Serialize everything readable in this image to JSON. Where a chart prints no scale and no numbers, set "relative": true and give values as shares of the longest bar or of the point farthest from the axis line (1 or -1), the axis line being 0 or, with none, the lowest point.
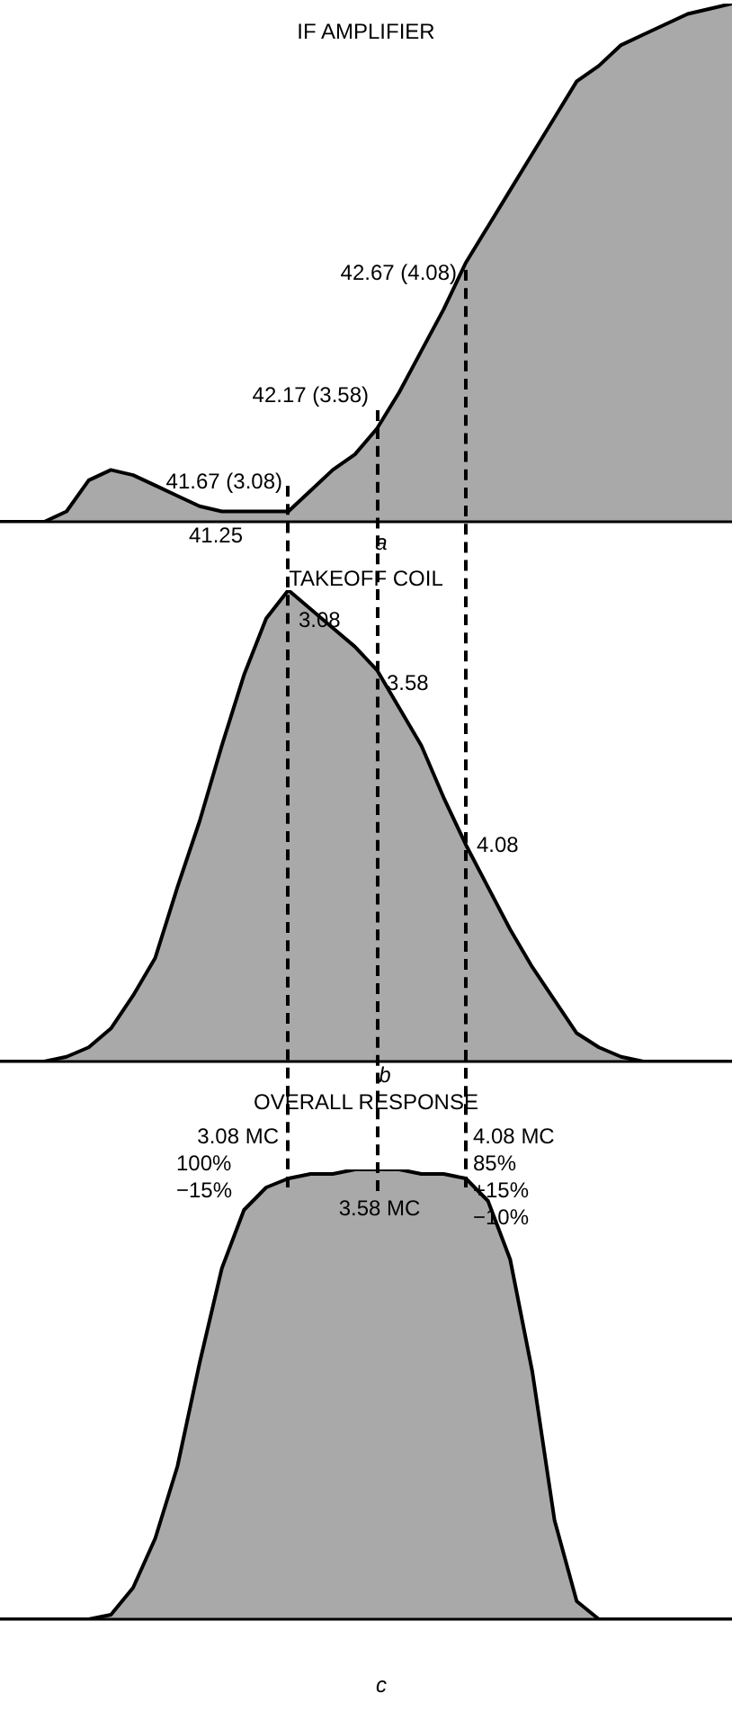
{
  "chart_data": [
    {
      "type": "area",
      "title": "IF AMPLIFIER",
      "relative": true,
      "categories": [
        null,
        null,
        null,
        null,
        null,
        null,
        null,
        null,
        null,
        null,
        null,
        null,
        null,
        null,
        null,
        null,
        null,
        null,
        null,
        null,
        null,
        null,
        null,
        null,
        null,
        null,
        null,
        null,
        null,
        null,
        null,
        null,
        null,
        null
      ],
      "series": [
        {
          "color": "#a9a9a9",
          "values": [
            0,
            0,
            0,
            0.02,
            0.08,
            0.1,
            0.09,
            0.07,
            0.05,
            0.03,
            0.02,
            0.02,
            0.02,
            0.02,
            0.06,
            0.1,
            0.13,
            0.18,
            0.25,
            0.33,
            0.41,
            0.5,
            0.57,
            0.64,
            0.71,
            0.78,
            0.85,
            0.88,
            0.92,
            0.94,
            0.96,
            0.98,
            0.99,
            1
          ]
        }
      ],
      "annotations": [
        "41.67 (3.08)",
        "42.17 (3.58)",
        "42.67 (4.08)",
        "41.25",
        "a"
      ]
    },
    {
      "type": "area",
      "title": "TAKEOFF COIL",
      "relative": true,
      "categories": [
        null,
        null,
        null,
        null,
        null,
        null,
        null,
        null,
        null,
        null,
        null,
        null,
        null,
        null,
        null,
        null,
        null,
        null,
        null,
        null,
        null,
        null,
        null,
        null,
        null,
        null,
        null,
        null,
        null,
        null,
        null,
        null,
        null,
        null
      ],
      "series": [
        {
          "color": "#a9a9a9",
          "values": [
            0,
            0,
            0,
            0.01,
            0.03,
            0.07,
            0.14,
            0.22,
            0.37,
            0.51,
            0.67,
            0.82,
            0.94,
            1,
            0.96,
            0.92,
            0.88,
            0.83,
            0.75,
            0.67,
            0.56,
            0.46,
            0.37,
            0.28,
            0.2,
            0.13,
            0.06,
            0.03,
            0.01,
            0,
            0,
            0,
            0,
            0
          ]
        }
      ],
      "annotations": [
        "3.08",
        "3.58",
        "4.08",
        "b"
      ]
    },
    {
      "type": "area",
      "title": "OVERALL RESPONSE",
      "relative": true,
      "categories": [
        null,
        null,
        null,
        null,
        null,
        null,
        null,
        null,
        null,
        null,
        null,
        null,
        null,
        null,
        null,
        null,
        null,
        null,
        null,
        null,
        null,
        null,
        null,
        null,
        null,
        null,
        null,
        null,
        null,
        null,
        null,
        null,
        null,
        null
      ],
      "series": [
        {
          "color": "#a9a9a9",
          "values": [
            0,
            0,
            0,
            0,
            0,
            0.01,
            0.07,
            0.18,
            0.34,
            0.57,
            0.78,
            0.91,
            0.96,
            0.98,
            0.99,
            0.99,
            1,
            1,
            1,
            0.99,
            0.99,
            0.98,
            0.93,
            0.8,
            0.55,
            0.22,
            0.04,
            0,
            0,
            0,
            0,
            0,
            0,
            0
          ]
        }
      ],
      "annotations": [
        "3.08 MC",
        "100%",
        "−15%",
        "3.58 MC",
        "4.08 MC",
        "85%",
        "+15%",
        "−10%",
        "c"
      ]
    }
  ]
}
